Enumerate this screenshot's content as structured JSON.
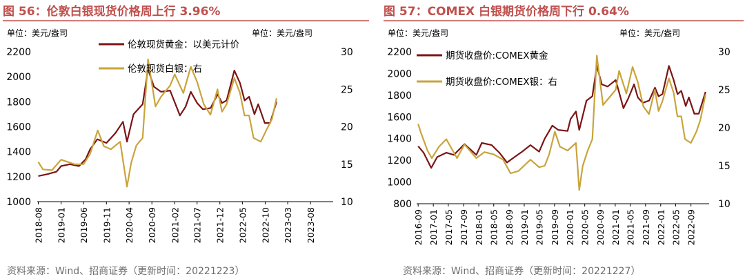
{
  "panels": [
    {
      "title": "图 56：伦敦白银现货价格周上行 3.96%",
      "unit_left": "单位：美元/盎司",
      "unit_right": "单位：美元/盎司",
      "source": "资料来源：Wind、招商证券（更新时间：20221223）"
    },
    {
      "title": "图 57：COMEX 白银期货价格周下行 0.64%",
      "unit_left": "单位：美元/盎司",
      "unit_right": "单位：美元/盎司",
      "source": "资料来源：Wind、招商证券（更新时间：20221227）"
    }
  ],
  "colors": {
    "gold": "#7b1416",
    "silver": "#c9a43c",
    "title": "#c0504d"
  },
  "chart_data": [
    {
      "type": "line",
      "title": "图 56：伦敦白银现货价格周上行 3.96%",
      "x_tick_labels": [
        "2018-08",
        "2019-01",
        "2019-06",
        "2019-11",
        "2020-04",
        "2020-09",
        "2021-02",
        "2021-07",
        "2021-12",
        "2022-05",
        "2022-10",
        "2023-03",
        "2023-08"
      ],
      "ylim_left": [
        1000,
        2200
      ],
      "yticks_left": [
        "1000",
        "1200",
        "1400",
        "1600",
        "1800",
        "2000",
        "2200"
      ],
      "ylim_right": [
        10,
        30
      ],
      "yticks_right": [
        "10",
        "15",
        "20",
        "25",
        "30"
      ],
      "grid": false,
      "legend_position": "top-center",
      "series": [
        {
          "name": "伦敦现货黄金：以美元计价",
          "axis": "left",
          "x": [
            "2018-08-01",
            "2018-10-01",
            "2018-12-01",
            "2019-01-01",
            "2019-03-01",
            "2019-05-01",
            "2019-06-15",
            "2019-07-15",
            "2019-09-01",
            "2019-11-01",
            "2020-01-01",
            "2020-02-20",
            "2020-03-18",
            "2020-05-01",
            "2020-07-01",
            "2020-08-06",
            "2020-09-15",
            "2020-11-01",
            "2021-01-01",
            "2021-03-08",
            "2021-04-15",
            "2021-05-20",
            "2021-07-01",
            "2021-08-09",
            "2021-09-30",
            "2021-11-16",
            "2021-12-15",
            "2022-01-15",
            "2022-03-08",
            "2022-04-15",
            "2022-05-16",
            "2022-06-15",
            "2022-07-21",
            "2022-08-15",
            "2022-09-28",
            "2022-11-03",
            "2022-12-16"
          ],
          "y": [
            1205,
            1220,
            1240,
            1285,
            1300,
            1285,
            1340,
            1420,
            1500,
            1470,
            1550,
            1640,
            1480,
            1700,
            1780,
            2060,
            1920,
            1880,
            1890,
            1690,
            1760,
            1880,
            1790,
            1740,
            1750,
            1860,
            1790,
            1810,
            2050,
            1950,
            1810,
            1840,
            1700,
            1780,
            1630,
            1630,
            1800
          ]
        },
        {
          "name": "伦敦现货白银：右",
          "axis": "right",
          "x": [
            "2018-08-01",
            "2018-09-01",
            "2018-11-01",
            "2019-01-01",
            "2019-04-01",
            "2019-06-01",
            "2019-07-15",
            "2019-09-04",
            "2019-10-15",
            "2019-12-01",
            "2020-02-01",
            "2020-03-18",
            "2020-04-15",
            "2020-05-20",
            "2020-07-01",
            "2020-08-06",
            "2020-09-25",
            "2020-11-01",
            "2021-01-01",
            "2021-02-01",
            "2021-03-31",
            "2021-05-20",
            "2021-07-01",
            "2021-08-15",
            "2021-09-29",
            "2021-11-15",
            "2021-12-15",
            "2022-01-15",
            "2022-03-08",
            "2022-04-15",
            "2022-05-15",
            "2022-06-15",
            "2022-07-15",
            "2022-09-01",
            "2022-10-15",
            "2022-11-15",
            "2022-12-16"
          ],
          "y": [
            15.3,
            14.3,
            14.2,
            15.6,
            15.0,
            15.0,
            16.4,
            19.5,
            17.4,
            17.0,
            18.0,
            12.0,
            15.2,
            17.5,
            18.5,
            29.0,
            22.7,
            24.0,
            25.5,
            27.0,
            24.5,
            28.0,
            26.0,
            23.0,
            21.6,
            25.0,
            22.0,
            23.0,
            26.5,
            24.5,
            21.5,
            21.5,
            18.5,
            18.0,
            19.8,
            21.0,
            23.8
          ]
        }
      ]
    },
    {
      "type": "line",
      "title": "图 57：COMEX 白银期货价格周下行 0.64%",
      "x_tick_labels": [
        "2016-09",
        "2017-01",
        "2017-05",
        "2017-09",
        "2018-01",
        "2018-05",
        "2018-09",
        "2019-01",
        "2019-05",
        "2019-09",
        "2020-01",
        "2020-05",
        "2020-09",
        "2021-01",
        "2021-05",
        "2021-09",
        "2022-01",
        "2022-05",
        "2022-09"
      ],
      "ylim_left": [
        800,
        2200
      ],
      "yticks_left": [
        "800",
        "1000",
        "1200",
        "1400",
        "1600",
        "1800",
        "2000",
        "2200"
      ],
      "ylim_right": [
        10,
        30
      ],
      "yticks_right": [
        "10",
        "15",
        "20",
        "25",
        "30"
      ],
      "grid": false,
      "legend_position": "top-left",
      "series": [
        {
          "name": "期货收盘价:COMEX黄金",
          "axis": "left",
          "x": [
            "2016-09-01",
            "2016-10-15",
            "2016-12-15",
            "2017-02-01",
            "2017-04-15",
            "2017-06-15",
            "2017-09-08",
            "2017-12-12",
            "2018-01-25",
            "2018-04-15",
            "2018-06-15",
            "2018-08-16",
            "2018-10-15",
            "2018-12-15",
            "2019-02-20",
            "2019-05-01",
            "2019-06-15",
            "2019-08-15",
            "2019-10-01",
            "2019-12-15",
            "2020-01-08",
            "2020-02-20",
            "2020-03-18",
            "2020-05-15",
            "2020-07-01",
            "2020-08-06",
            "2020-09-15",
            "2020-11-01",
            "2021-01-05",
            "2021-03-08",
            "2021-04-15",
            "2021-06-01",
            "2021-07-01",
            "2021-08-09",
            "2021-09-30",
            "2021-11-16",
            "2021-12-15",
            "2022-01-15",
            "2022-03-08",
            "2022-04-15",
            "2022-05-16",
            "2022-06-15",
            "2022-07-21",
            "2022-08-15",
            "2022-09-28",
            "2022-11-03",
            "2022-12-27"
          ],
          "y": [
            1330,
            1270,
            1130,
            1230,
            1270,
            1250,
            1350,
            1250,
            1360,
            1340,
            1270,
            1180,
            1230,
            1280,
            1340,
            1280,
            1400,
            1520,
            1480,
            1470,
            1580,
            1650,
            1480,
            1750,
            1790,
            2070,
            1900,
            1880,
            1940,
            1680,
            1770,
            1900,
            1780,
            1730,
            1750,
            1870,
            1790,
            1810,
            2070,
            1940,
            1810,
            1840,
            1700,
            1780,
            1630,
            1630,
            1830
          ]
        },
        {
          "name": "期货收盘价:COMEX银：右",
          "axis": "right",
          "x": [
            "2016-09-01",
            "2016-09-20",
            "2016-11-15",
            "2016-12-20",
            "2017-02-15",
            "2017-04-15",
            "2017-07-10",
            "2017-09-08",
            "2017-12-12",
            "2018-02-15",
            "2018-05-01",
            "2018-07-15",
            "2018-09-13",
            "2018-11-15",
            "2019-02-20",
            "2019-05-01",
            "2019-06-15",
            "2019-07-20",
            "2019-09-04",
            "2019-10-15",
            "2019-12-15",
            "2020-02-20",
            "2020-03-18",
            "2020-04-15",
            "2020-05-25",
            "2020-07-01",
            "2020-08-06",
            "2020-09-25",
            "2020-11-15",
            "2021-01-05",
            "2021-02-01",
            "2021-03-31",
            "2021-05-20",
            "2021-07-01",
            "2021-08-15",
            "2021-09-29",
            "2021-11-15",
            "2021-12-15",
            "2022-01-15",
            "2022-03-08",
            "2022-04-15",
            "2022-05-15",
            "2022-06-15",
            "2022-07-15",
            "2022-09-01",
            "2022-10-15",
            "2022-11-15",
            "2022-12-27"
          ],
          "y": [
            20.5,
            19.5,
            17.0,
            16.0,
            17.5,
            18.5,
            16.0,
            17.8,
            16.0,
            16.8,
            16.5,
            15.8,
            14.0,
            14.3,
            15.8,
            14.8,
            15.0,
            16.5,
            19.5,
            17.5,
            17.0,
            18.0,
            11.8,
            15.0,
            17.0,
            18.5,
            29.5,
            23.0,
            24.0,
            25.0,
            27.5,
            24.5,
            28.0,
            26.0,
            22.8,
            21.8,
            25.0,
            22.2,
            23.5,
            26.5,
            24.6,
            21.5,
            21.5,
            18.5,
            18.0,
            19.5,
            21.0,
            24.4
          ]
        }
      ]
    }
  ]
}
